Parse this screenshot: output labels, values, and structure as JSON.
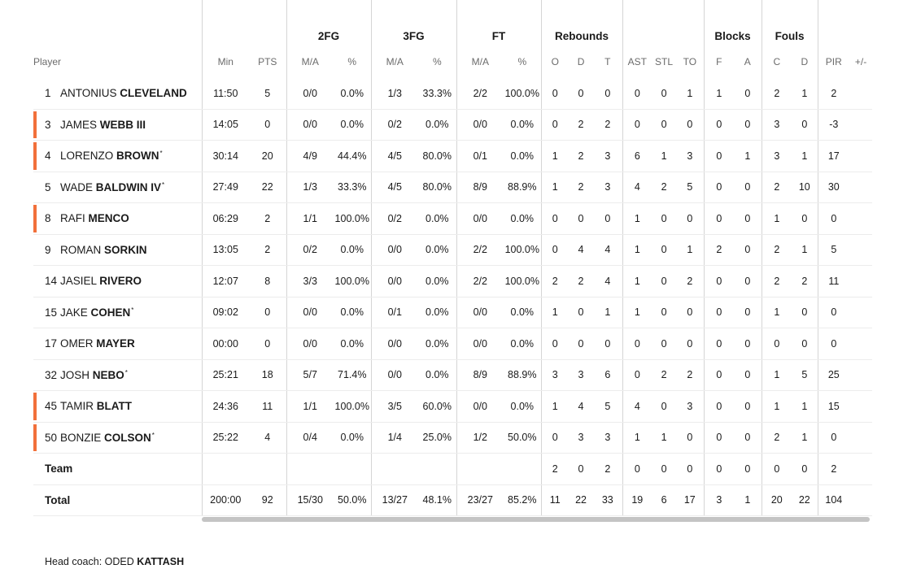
{
  "headers": {
    "groups": {
      "fg2": "2FG",
      "fg3": "3FG",
      "ft": "FT",
      "reb": "Rebounds",
      "blk": "Blocks",
      "fouls": "Fouls"
    },
    "player": "Player",
    "min": "Min",
    "pts": "PTS",
    "fg2_ma": "M/A",
    "fg2_pct": "%",
    "fg3_ma": "M/A",
    "fg3_pct": "%",
    "ft_ma": "M/A",
    "ft_pct": "%",
    "o": "O",
    "d": "D",
    "t": "T",
    "ast": "AST",
    "stl": "STL",
    "to": "TO",
    "f": "F",
    "a": "A",
    "c": "C",
    "fd": "D",
    "pir": "PIR",
    "pm": "+/-"
  },
  "players": [
    {
      "num": "1",
      "first": "ANTONIUS",
      "last": "CLEVELAND",
      "mark": "",
      "starter": false,
      "min": "11:50",
      "pts": "5",
      "fg2": "0/0",
      "fg2p": "0.0%",
      "fg3": "1/3",
      "fg3p": "33.3%",
      "ft": "2/2",
      "ftp": "100.0%",
      "o": "0",
      "d": "0",
      "t": "0",
      "ast": "0",
      "stl": "0",
      "to": "1",
      "bf": "1",
      "ba": "0",
      "fc": "2",
      "fd": "1",
      "pir": "2",
      "pm": ""
    },
    {
      "num": "3",
      "first": "JAMES",
      "last": "WEBB III",
      "mark": "",
      "starter": true,
      "min": "14:05",
      "pts": "0",
      "fg2": "0/0",
      "fg2p": "0.0%",
      "fg3": "0/2",
      "fg3p": "0.0%",
      "ft": "0/0",
      "ftp": "0.0%",
      "o": "0",
      "d": "2",
      "t": "2",
      "ast": "0",
      "stl": "0",
      "to": "0",
      "bf": "0",
      "ba": "0",
      "fc": "3",
      "fd": "0",
      "pir": "-3",
      "pm": ""
    },
    {
      "num": "4",
      "first": "LORENZO",
      "last": "BROWN",
      "mark": "*",
      "starter": true,
      "min": "30:14",
      "pts": "20",
      "fg2": "4/9",
      "fg2p": "44.4%",
      "fg3": "4/5",
      "fg3p": "80.0%",
      "ft": "0/1",
      "ftp": "0.0%",
      "o": "1",
      "d": "2",
      "t": "3",
      "ast": "6",
      "stl": "1",
      "to": "3",
      "bf": "0",
      "ba": "1",
      "fc": "3",
      "fd": "1",
      "pir": "17",
      "pm": ""
    },
    {
      "num": "5",
      "first": "WADE",
      "last": "BALDWIN IV",
      "mark": "*",
      "starter": false,
      "min": "27:49",
      "pts": "22",
      "fg2": "1/3",
      "fg2p": "33.3%",
      "fg3": "4/5",
      "fg3p": "80.0%",
      "ft": "8/9",
      "ftp": "88.9%",
      "o": "1",
      "d": "2",
      "t": "3",
      "ast": "4",
      "stl": "2",
      "to": "5",
      "bf": "0",
      "ba": "0",
      "fc": "2",
      "fd": "10",
      "pir": "30",
      "pm": ""
    },
    {
      "num": "8",
      "first": "RAFI",
      "last": "MENCO",
      "mark": "",
      "starter": true,
      "min": "06:29",
      "pts": "2",
      "fg2": "1/1",
      "fg2p": "100.0%",
      "fg3": "0/2",
      "fg3p": "0.0%",
      "ft": "0/0",
      "ftp": "0.0%",
      "o": "0",
      "d": "0",
      "t": "0",
      "ast": "1",
      "stl": "0",
      "to": "0",
      "bf": "0",
      "ba": "0",
      "fc": "1",
      "fd": "0",
      "pir": "0",
      "pm": ""
    },
    {
      "num": "9",
      "first": "ROMAN",
      "last": "SORKIN",
      "mark": "",
      "starter": false,
      "min": "13:05",
      "pts": "2",
      "fg2": "0/2",
      "fg2p": "0.0%",
      "fg3": "0/0",
      "fg3p": "0.0%",
      "ft": "2/2",
      "ftp": "100.0%",
      "o": "0",
      "d": "4",
      "t": "4",
      "ast": "1",
      "stl": "0",
      "to": "1",
      "bf": "2",
      "ba": "0",
      "fc": "2",
      "fd": "1",
      "pir": "5",
      "pm": ""
    },
    {
      "num": "14",
      "first": "JASIEL",
      "last": "RIVERO",
      "mark": "",
      "starter": false,
      "min": "12:07",
      "pts": "8",
      "fg2": "3/3",
      "fg2p": "100.0%",
      "fg3": "0/0",
      "fg3p": "0.0%",
      "ft": "2/2",
      "ftp": "100.0%",
      "o": "2",
      "d": "2",
      "t": "4",
      "ast": "1",
      "stl": "0",
      "to": "2",
      "bf": "0",
      "ba": "0",
      "fc": "2",
      "fd": "2",
      "pir": "11",
      "pm": ""
    },
    {
      "num": "15",
      "first": "JAKE",
      "last": "COHEN",
      "mark": "*",
      "starter": false,
      "min": "09:02",
      "pts": "0",
      "fg2": "0/0",
      "fg2p": "0.0%",
      "fg3": "0/1",
      "fg3p": "0.0%",
      "ft": "0/0",
      "ftp": "0.0%",
      "o": "1",
      "d": "0",
      "t": "1",
      "ast": "1",
      "stl": "0",
      "to": "0",
      "bf": "0",
      "ba": "0",
      "fc": "1",
      "fd": "0",
      "pir": "0",
      "pm": ""
    },
    {
      "num": "17",
      "first": "OMER",
      "last": "MAYER",
      "mark": "",
      "starter": false,
      "min": "00:00",
      "pts": "0",
      "fg2": "0/0",
      "fg2p": "0.0%",
      "fg3": "0/0",
      "fg3p": "0.0%",
      "ft": "0/0",
      "ftp": "0.0%",
      "o": "0",
      "d": "0",
      "t": "0",
      "ast": "0",
      "stl": "0",
      "to": "0",
      "bf": "0",
      "ba": "0",
      "fc": "0",
      "fd": "0",
      "pir": "0",
      "pm": ""
    },
    {
      "num": "32",
      "first": "JOSH",
      "last": "NEBO",
      "mark": "*",
      "starter": false,
      "min": "25:21",
      "pts": "18",
      "fg2": "5/7",
      "fg2p": "71.4%",
      "fg3": "0/0",
      "fg3p": "0.0%",
      "ft": "8/9",
      "ftp": "88.9%",
      "o": "3",
      "d": "3",
      "t": "6",
      "ast": "0",
      "stl": "2",
      "to": "2",
      "bf": "0",
      "ba": "0",
      "fc": "1",
      "fd": "5",
      "pir": "25",
      "pm": ""
    },
    {
      "num": "45",
      "first": "TAMIR",
      "last": "BLATT",
      "mark": "",
      "starter": true,
      "min": "24:36",
      "pts": "11",
      "fg2": "1/1",
      "fg2p": "100.0%",
      "fg3": "3/5",
      "fg3p": "60.0%",
      "ft": "0/0",
      "ftp": "0.0%",
      "o": "1",
      "d": "4",
      "t": "5",
      "ast": "4",
      "stl": "0",
      "to": "3",
      "bf": "0",
      "ba": "0",
      "fc": "1",
      "fd": "1",
      "pir": "15",
      "pm": ""
    },
    {
      "num": "50",
      "first": "BONZIE",
      "last": "COLSON",
      "mark": "*",
      "starter": true,
      "min": "25:22",
      "pts": "4",
      "fg2": "0/4",
      "fg2p": "0.0%",
      "fg3": "1/4",
      "fg3p": "25.0%",
      "ft": "1/2",
      "ftp": "50.0%",
      "o": "0",
      "d": "3",
      "t": "3",
      "ast": "1",
      "stl": "1",
      "to": "0",
      "bf": "0",
      "ba": "0",
      "fc": "2",
      "fd": "1",
      "pir": "0",
      "pm": ""
    }
  ],
  "team": {
    "label": "Team",
    "o": "2",
    "d": "0",
    "t": "2",
    "ast": "0",
    "stl": "0",
    "to": "0",
    "bf": "0",
    "ba": "0",
    "fc": "0",
    "fd": "0",
    "pir": "2"
  },
  "total": {
    "label": "Total",
    "min": "200:00",
    "pts": "92",
    "fg2": "15/30",
    "fg2p": "50.0%",
    "fg3": "13/27",
    "fg3p": "48.1%",
    "ft": "23/27",
    "ftp": "85.2%",
    "o": "11",
    "d": "22",
    "t": "33",
    "ast": "19",
    "stl": "6",
    "to": "17",
    "bf": "3",
    "ba": "1",
    "fc": "20",
    "fd": "22",
    "pir": "104",
    "pm": ""
  },
  "coach": {
    "prefix": "Head coach:",
    "first": "ODED",
    "last": "KATTASH"
  },
  "colors": {
    "starter_bar": "#f2703b"
  }
}
